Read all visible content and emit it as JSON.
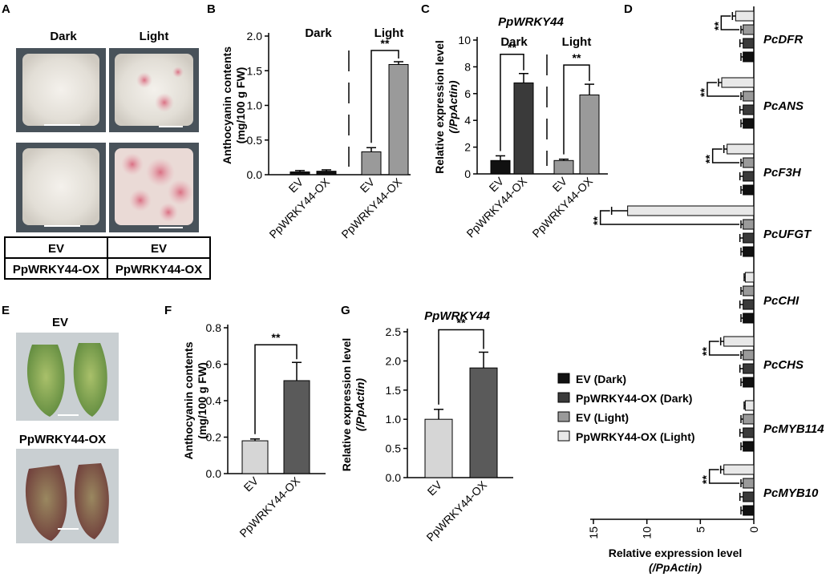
{
  "colors": {
    "ev_dark": "#111111",
    "ox_dark": "#3a3a3a",
    "ev_light": "#9a9a9a",
    "ox_light": "#e8e8e8",
    "f_ev": "#d6d6d6",
    "f_ox": "#5a5a5a",
    "g_ev": "#d6d6d6",
    "g_ox": "#5a5a5a"
  },
  "panel_a": {
    "letter": "A",
    "col_labels": [
      "Dark",
      "Light"
    ],
    "table": [
      [
        "EV",
        "EV"
      ],
      [
        "PpWRKY44-OX",
        "PpWRKY44-OX"
      ]
    ]
  },
  "panel_e": {
    "letter": "E",
    "labels": [
      "EV",
      "PpWRKY44-OX"
    ]
  },
  "chart_data": [
    {
      "id": "B",
      "type": "bar",
      "letter": "B",
      "title": "",
      "ylabel_lines": [
        "Anthocyanin contents",
        "(mg/100 g FW)"
      ],
      "ylim": [
        0,
        2.0
      ],
      "yticks": [
        "0.0",
        "0.5",
        "1.0",
        "1.5",
        "2.0"
      ],
      "group_labels": [
        "Dark",
        "Light"
      ],
      "categories": [
        "EV",
        "PpWRKY44-OX",
        "EV",
        "PpWRKY44-OX"
      ],
      "values": [
        0.04,
        0.05,
        0.33,
        1.59
      ],
      "errors": [
        0.02,
        0.02,
        0.06,
        0.04
      ],
      "significance": [
        {
          "between": [
            2,
            3
          ],
          "label": "**"
        }
      ]
    },
    {
      "id": "C",
      "type": "bar",
      "letter": "C",
      "title": "PpWRKY44",
      "ylabel_lines": [
        "Relative expression level",
        "(/PpActin)"
      ],
      "ylim": [
        0,
        10
      ],
      "yticks": [
        "0",
        "2",
        "4",
        "6",
        "8",
        "10"
      ],
      "group_labels": [
        "Dark",
        "Light"
      ],
      "categories": [
        "EV",
        "PpWRKY44-OX",
        "EV",
        "PpWRKY44-OX"
      ],
      "values": [
        1.0,
        6.8,
        1.0,
        5.9
      ],
      "errors": [
        0.35,
        0.7,
        0.1,
        0.8
      ],
      "significance": [
        {
          "between": [
            0,
            1
          ],
          "label": "**"
        },
        {
          "between": [
            2,
            3
          ],
          "label": "**"
        }
      ]
    },
    {
      "id": "D",
      "type": "bar",
      "orientation": "horizontal",
      "letter": "D",
      "xlabel_lines": [
        "Relative expression level",
        "(/PpActin)"
      ],
      "xlim": [
        0,
        15
      ],
      "xticks": [
        "15",
        "10",
        "5",
        "0"
      ],
      "genes": [
        "PcDFR",
        "PcANS",
        "PcF3H",
        "PcUFGT",
        "PcCHI",
        "PcCHS",
        "PcMYB114",
        "PcMYB10"
      ],
      "legend": [
        "EV (Dark)",
        "PpWRKY44-OX (Dark)",
        "EV (Light)",
        "PpWRKY44-OX (Light)"
      ],
      "legend_position": "left",
      "series": [
        {
          "name": "PpWRKY44-OX (Light)",
          "values": [
            1.7,
            3.0,
            2.5,
            11.8,
            0.8,
            2.8,
            0.8,
            2.8
          ],
          "errors": [
            0.3,
            0.3,
            0.3,
            1.5,
            0.1,
            0.3,
            0.1,
            0.3
          ]
        },
        {
          "name": "EV (Light)",
          "values": [
            1.0,
            1.0,
            1.0,
            1.0,
            1.0,
            1.0,
            1.0,
            1.0
          ],
          "errors": [
            0.2,
            0.2,
            0.2,
            0.2,
            0.2,
            0.2,
            0.2,
            0.2
          ]
        },
        {
          "name": "PpWRKY44-OX (Dark)",
          "values": [
            1.0,
            1.0,
            1.0,
            1.0,
            1.0,
            1.0,
            1.0,
            1.0
          ],
          "errors": [
            0.3,
            0.3,
            0.3,
            0.3,
            0.3,
            0.3,
            0.3,
            0.3
          ]
        },
        {
          "name": "EV (Dark)",
          "values": [
            1.0,
            1.0,
            1.0,
            1.0,
            1.0,
            1.0,
            1.0,
            1.0
          ],
          "errors": [
            0.2,
            0.2,
            0.2,
            0.2,
            0.2,
            0.2,
            0.2,
            0.2
          ]
        }
      ],
      "significance_label": "**",
      "significance_genes": [
        0,
        1,
        2,
        3,
        5,
        7
      ]
    },
    {
      "id": "F",
      "type": "bar",
      "letter": "F",
      "title": "",
      "ylabel_lines": [
        "Anthocyanin contents",
        "(mg/100 g FW)"
      ],
      "ylim": [
        0,
        0.8
      ],
      "yticks": [
        "0.0",
        "0.2",
        "0.4",
        "0.6",
        "0.8"
      ],
      "categories": [
        "EV",
        "PpWRKY44-OX"
      ],
      "values": [
        0.18,
        0.51
      ],
      "errors": [
        0.01,
        0.1
      ],
      "significance": [
        {
          "between": [
            0,
            1
          ],
          "label": "**"
        }
      ]
    },
    {
      "id": "G",
      "type": "bar",
      "letter": "G",
      "title": "PpWRKY44",
      "ylabel_lines": [
        "Relative expression level",
        "(/PpActin)"
      ],
      "ylim": [
        0,
        2.5
      ],
      "yticks": [
        "0.0",
        "0.5",
        "1.0",
        "1.5",
        "2.0",
        "2.5"
      ],
      "categories": [
        "EV",
        "PpWRKY44-OX"
      ],
      "values": [
        1.0,
        1.88
      ],
      "errors": [
        0.17,
        0.27
      ],
      "significance": [
        {
          "between": [
            0,
            1
          ],
          "label": "**"
        }
      ]
    }
  ]
}
